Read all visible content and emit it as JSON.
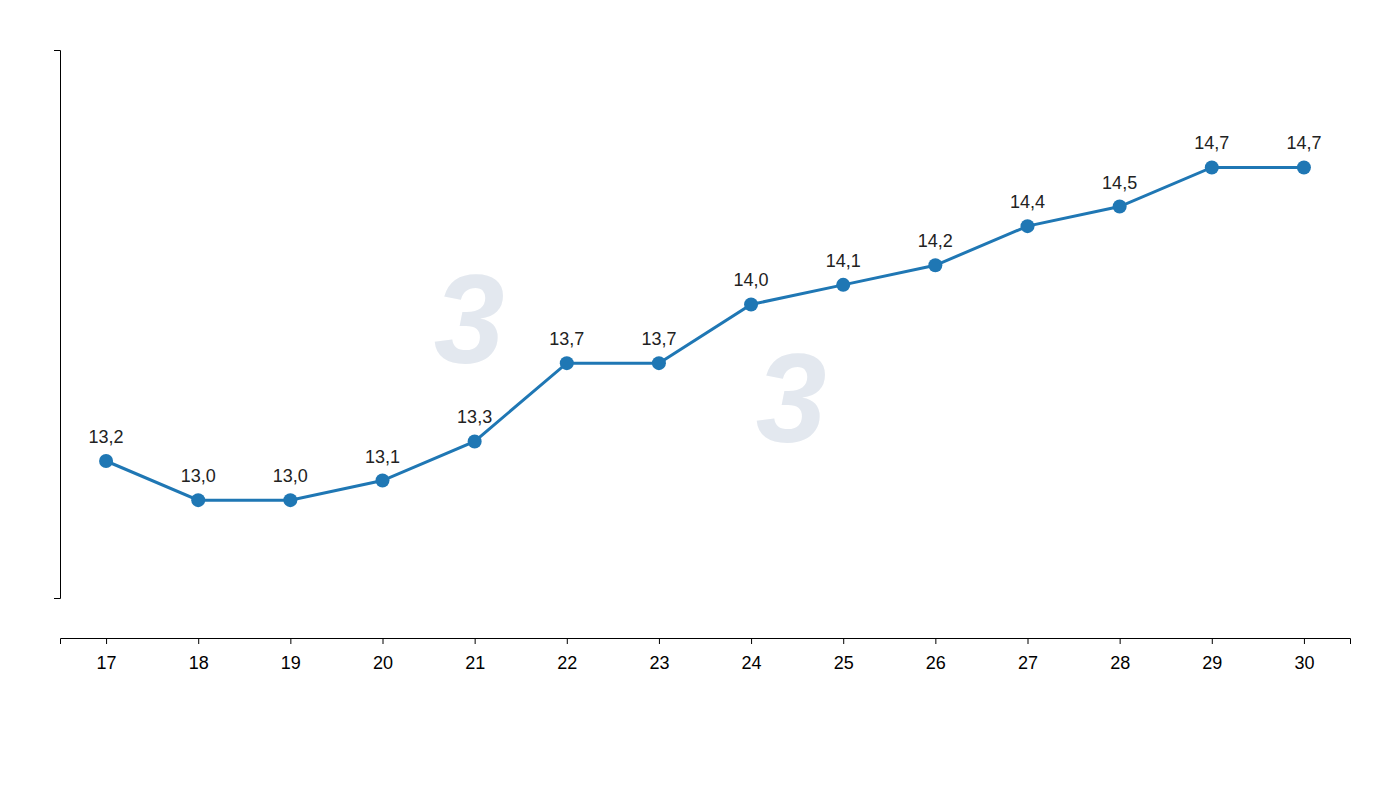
{
  "chart_data": {
    "type": "line",
    "x": [
      17,
      18,
      19,
      20,
      21,
      22,
      23,
      24,
      25,
      26,
      27,
      28,
      29,
      30
    ],
    "values": [
      13.2,
      13.0,
      13.0,
      13.1,
      13.3,
      13.7,
      13.7,
      14.0,
      14.1,
      14.2,
      14.4,
      14.5,
      14.7,
      14.7
    ],
    "value_labels": [
      "13,2",
      "13,0",
      "13,0",
      "13,1",
      "13,3",
      "13,7",
      "13,7",
      "14,0",
      "14,1",
      "14,2",
      "14,4",
      "14,5",
      "14,7",
      "14,7"
    ],
    "data_labels": true,
    "marker": "circle",
    "xlim": [
      16.5,
      30.5
    ],
    "xticks": [
      17,
      18,
      19,
      20,
      21,
      22,
      23,
      24,
      25,
      26,
      27,
      28,
      29,
      30
    ],
    "ylim": [
      12.5,
      15.3
    ],
    "tick_labels": "x",
    "grid": false,
    "annotations": [
      "3",
      "3"
    ]
  }
}
